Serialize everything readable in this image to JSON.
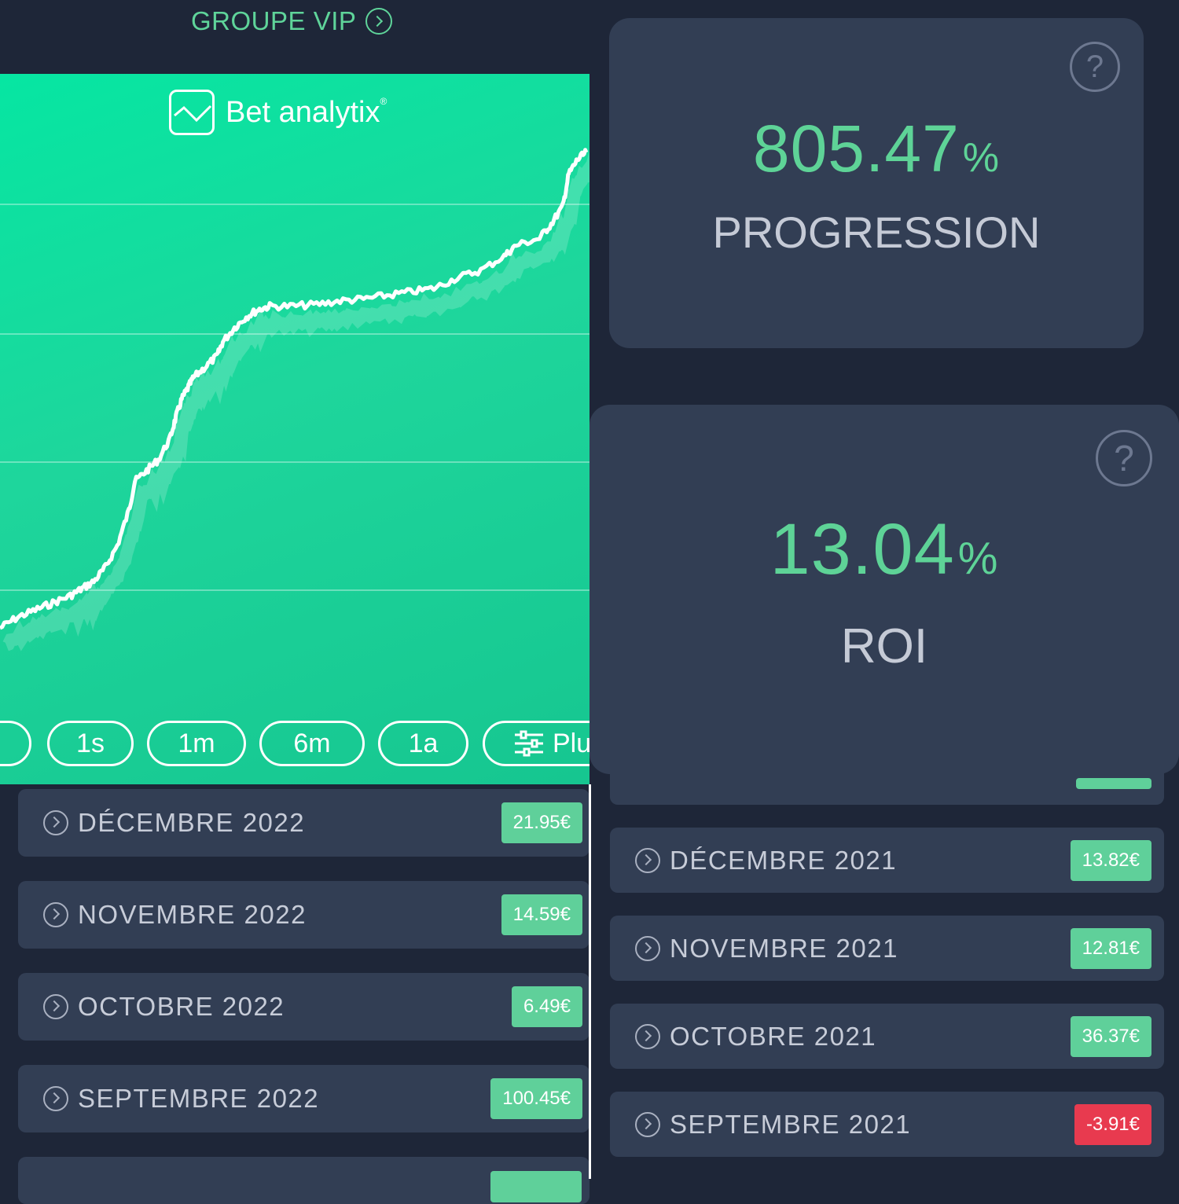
{
  "header": {
    "vip_label": "GROUPE VIP"
  },
  "chart": {
    "logo_text": "Bet analytix",
    "logo_mark": "®",
    "ranges": [
      "1s",
      "1m",
      "6m",
      "1a"
    ],
    "more_label": "Plu",
    "gridline_count": 4,
    "series_shape": [
      [
        0,
        0.03
      ],
      [
        3,
        0.06
      ],
      [
        6,
        0.08
      ],
      [
        9,
        0.1
      ],
      [
        12,
        0.12
      ],
      [
        14,
        0.14
      ],
      [
        16,
        0.16
      ],
      [
        18,
        0.2
      ],
      [
        20,
        0.26
      ],
      [
        22,
        0.36
      ],
      [
        23,
        0.44
      ],
      [
        25,
        0.47
      ],
      [
        27,
        0.5
      ],
      [
        29,
        0.56
      ],
      [
        30,
        0.62
      ],
      [
        31,
        0.67
      ],
      [
        32,
        0.7
      ],
      [
        33,
        0.73
      ],
      [
        35,
        0.76
      ],
      [
        37,
        0.79
      ],
      [
        38,
        0.83
      ],
      [
        40,
        0.87
      ],
      [
        42,
        0.9
      ],
      [
        44,
        0.92
      ],
      [
        46,
        0.93
      ],
      [
        50,
        0.93
      ],
      [
        54,
        0.935
      ],
      [
        58,
        0.945
      ],
      [
        62,
        0.95
      ],
      [
        66,
        0.96
      ],
      [
        70,
        0.97
      ],
      [
        74,
        0.98
      ],
      [
        78,
        1.01
      ],
      [
        82,
        1.03
      ],
      [
        86,
        1.07
      ],
      [
        88,
        1.1
      ],
      [
        92,
        1.12
      ],
      [
        94,
        1.16
      ],
      [
        96,
        1.21
      ],
      [
        97,
        1.3
      ],
      [
        98.5,
        1.34
      ],
      [
        100,
        1.36
      ]
    ],
    "colors": {
      "bg_start": "#06e6a2",
      "bg_end": "#16c690",
      "line": "#ffffff"
    }
  },
  "stats": {
    "progression": {
      "value": "805.47",
      "unit": "%",
      "label": "PROGRESSION",
      "help_icon": "?"
    },
    "roi": {
      "value": "13.04",
      "unit": "%",
      "label": "ROI",
      "help_icon": "?"
    }
  },
  "months_left": [
    {
      "label": "DÉCEMBRE 2022",
      "amount": "21.95€",
      "status": "pos"
    },
    {
      "label": "NOVEMBRE 2022",
      "amount": "14.59€",
      "status": "pos"
    },
    {
      "label": "OCTOBRE 2022",
      "amount": "6.49€",
      "status": "pos"
    },
    {
      "label": "SEPTEMBRE 2022",
      "amount": "100.45€",
      "status": "pos"
    }
  ],
  "months_right": [
    {
      "label": "DÉCEMBRE 2021",
      "amount": "13.82€",
      "status": "pos"
    },
    {
      "label": "NOVEMBRE 2021",
      "amount": "12.81€",
      "status": "pos"
    },
    {
      "label": "OCTOBRE 2021",
      "amount": "36.37€",
      "status": "pos"
    },
    {
      "label": "SEPTEMBRE 2021",
      "amount": "-3.91€",
      "status": "neg"
    }
  ],
  "theme": {
    "bg": "#1e2638",
    "card": "#323e54",
    "accent": "#5fd49a",
    "negative": "#e83a4f"
  }
}
